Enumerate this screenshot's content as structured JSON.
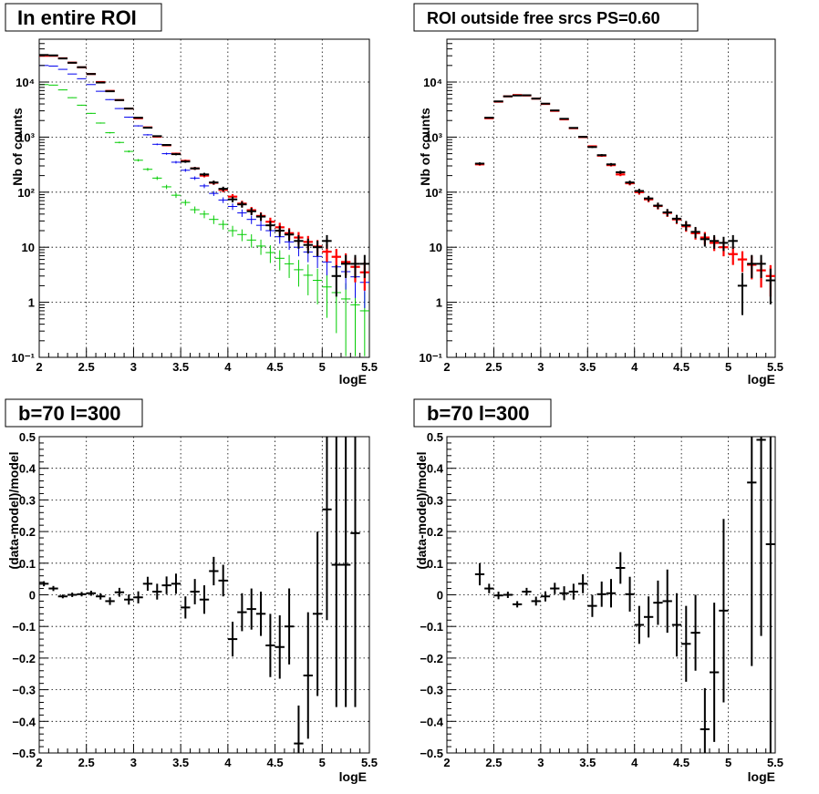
{
  "chart_data": [
    {
      "type": "scatter",
      "title": "In entire ROI",
      "xlabel": "logE",
      "ylabel": "Nb of counts",
      "xlim": [
        2,
        5.5
      ],
      "ylim": [
        0.1,
        60000
      ],
      "yscale": "log",
      "grid": true,
      "x_ticks": [
        "2",
        "2.5",
        "3",
        "3.5",
        "4",
        "4.5",
        "5",
        "5.5"
      ],
      "y_ticks": [
        "10⁻¹",
        "1",
        "10",
        "10²",
        "10³",
        "10⁴"
      ],
      "series": [
        {
          "color": "#00cc00",
          "x": [
            2.05,
            2.15,
            2.25,
            2.35,
            2.45,
            2.55,
            2.65,
            2.75,
            2.85,
            2.95,
            3.05,
            3.15,
            3.25,
            3.35,
            3.45,
            3.55,
            3.65,
            3.75,
            3.85,
            3.95,
            4.05,
            4.15,
            4.25,
            4.35,
            4.45,
            4.55,
            4.65,
            4.75,
            4.85,
            4.95,
            5.05,
            5.15,
            5.25,
            5.35,
            5.45
          ],
          "y": [
            9000,
            8800,
            7200,
            5200,
            3800,
            2700,
            1800,
            1200,
            800,
            550,
            380,
            260,
            180,
            125,
            88,
            65,
            48,
            40,
            32,
            26,
            20,
            17,
            13.5,
            10.5,
            8,
            6.3,
            5,
            3.9,
            3.1,
            2.5,
            1.9,
            1.5,
            1.15,
            0.9,
            0.7
          ]
        },
        {
          "color": "#0000ee",
          "x": [
            2.05,
            2.15,
            2.25,
            2.35,
            2.45,
            2.55,
            2.65,
            2.75,
            2.85,
            2.95,
            3.05,
            3.15,
            3.25,
            3.35,
            3.45,
            3.55,
            3.65,
            3.75,
            3.85,
            3.95,
            4.05,
            4.15,
            4.25,
            4.35,
            4.45,
            4.55,
            4.65,
            4.75,
            4.85,
            4.95,
            5.05,
            5.15,
            5.25,
            5.35,
            5.45
          ],
          "y": [
            20000,
            19500,
            17000,
            14000,
            11500,
            9000,
            6800,
            4800,
            3300,
            2300,
            1600,
            1100,
            740,
            500,
            350,
            250,
            180,
            130,
            95,
            72,
            55,
            42,
            32,
            25,
            20,
            15.5,
            12.5,
            10,
            8.2,
            6.8,
            5.4,
            4.4,
            3.6,
            2.9,
            2.3
          ]
        },
        {
          "color": "#ff0000",
          "x": [
            2.05,
            2.15,
            2.25,
            2.35,
            2.45,
            2.55,
            2.65,
            2.75,
            2.85,
            2.95,
            3.05,
            3.15,
            3.25,
            3.35,
            3.45,
            3.55,
            3.65,
            3.75,
            3.85,
            3.95,
            4.05,
            4.15,
            4.25,
            4.35,
            4.45,
            4.55,
            4.65,
            4.75,
            4.85,
            4.95,
            5.05,
            5.15,
            5.25,
            5.35,
            5.45
          ],
          "y": [
            30000,
            30000,
            27000,
            22500,
            18500,
            14000,
            10000,
            6900,
            4700,
            3300,
            2200,
            1500,
            1020,
            710,
            500,
            370,
            270,
            200,
            148,
            110,
            83,
            62,
            47,
            37,
            29,
            23,
            18,
            15,
            12.5,
            10.3,
            8.3,
            6.7,
            5.4,
            4.4,
            3.5
          ]
        },
        {
          "color": "#000000",
          "x": [
            2.05,
            2.15,
            2.25,
            2.35,
            2.45,
            2.55,
            2.65,
            2.75,
            2.85,
            2.95,
            3.05,
            3.15,
            3.25,
            3.35,
            3.45,
            3.55,
            3.65,
            3.75,
            3.85,
            3.95,
            4.05,
            4.15,
            4.25,
            4.35,
            4.45,
            4.55,
            4.65,
            4.75,
            4.85,
            4.95,
            5.05,
            5.15,
            5.25,
            5.35,
            5.45
          ],
          "y": [
            31000,
            30500,
            26800,
            22400,
            18600,
            14000,
            9800,
            6800,
            4700,
            3300,
            2250,
            1480,
            1040,
            720,
            490,
            360,
            270,
            210,
            150,
            115,
            74,
            60,
            45,
            36,
            25,
            20,
            17,
            13,
            11,
            10,
            13,
            3,
            5,
            5,
            5
          ]
        }
      ]
    },
    {
      "type": "scatter",
      "title": "ROI outside free srcs PS=0.60",
      "xlabel": "logE",
      "ylabel": "Nb of counts",
      "xlim": [
        2,
        5.5
      ],
      "ylim": [
        0.1,
        60000
      ],
      "yscale": "log",
      "grid": true,
      "x_ticks": [
        "2",
        "2.5",
        "3",
        "3.5",
        "4",
        "4.5",
        "5",
        "5.5"
      ],
      "y_ticks": [
        "10⁻¹",
        "1",
        "10",
        "10²",
        "10³",
        "10⁴"
      ],
      "series": [
        {
          "color": "#ff0000",
          "x": [
            2.35,
            2.45,
            2.55,
            2.65,
            2.75,
            2.85,
            2.95,
            3.05,
            3.15,
            3.25,
            3.35,
            3.45,
            3.55,
            3.65,
            3.75,
            3.85,
            3.95,
            4.05,
            4.15,
            4.25,
            4.35,
            4.45,
            4.55,
            4.65,
            4.75,
            4.85,
            4.95,
            5.05,
            5.15,
            5.25,
            5.35,
            5.45
          ],
          "y": [
            320,
            2200,
            4400,
            5500,
            5800,
            5700,
            5000,
            4000,
            3000,
            2100,
            1450,
            1000,
            680,
            460,
            310,
            210,
            145,
            100,
            74,
            56,
            42,
            32,
            24,
            18,
            15,
            12,
            10,
            7.5,
            6,
            4.8,
            3.8,
            3
          ]
        },
        {
          "color": "#000000",
          "x": [
            2.35,
            2.45,
            2.55,
            2.65,
            2.75,
            2.85,
            2.95,
            3.05,
            3.15,
            3.25,
            3.35,
            3.45,
            3.55,
            3.65,
            3.75,
            3.85,
            3.95,
            4.05,
            4.15,
            4.25,
            4.35,
            4.45,
            4.55,
            4.65,
            4.75,
            4.85,
            4.95,
            5.05,
            5.15,
            5.25,
            5.35,
            5.45
          ],
          "y": [
            330,
            2250,
            4450,
            5500,
            5700,
            5750,
            5000,
            4050,
            3050,
            2150,
            1470,
            1010,
            660,
            470,
            320,
            230,
            150,
            105,
            77,
            57,
            43,
            33,
            25,
            19,
            14,
            13,
            12,
            13,
            2,
            5,
            5,
            2.5
          ]
        }
      ]
    },
    {
      "type": "scatter",
      "title": "b=70 l=300",
      "xlabel": "logE",
      "ylabel": "(data-model)/model",
      "xlim": [
        2,
        5.5
      ],
      "ylim": [
        -0.5,
        0.5
      ],
      "grid": true,
      "x_ticks": [
        "2",
        "2.5",
        "3",
        "3.5",
        "4",
        "4.5",
        "5",
        "5.5"
      ],
      "y_ticks": [
        "−0.5",
        "−0.4",
        "−0.3",
        "−0.2",
        "−0.1",
        "0",
        "0.1",
        "0.2",
        "0.3",
        "0.4",
        "0.5"
      ],
      "series": [
        {
          "color": "#000000",
          "x": [
            2.05,
            2.15,
            2.25,
            2.35,
            2.45,
            2.55,
            2.65,
            2.75,
            2.85,
            2.95,
            3.05,
            3.15,
            3.25,
            3.35,
            3.45,
            3.55,
            3.65,
            3.75,
            3.85,
            3.95,
            4.05,
            4.15,
            4.25,
            4.35,
            4.45,
            4.55,
            4.65,
            4.75,
            4.85,
            4.95,
            5.05,
            5.15,
            5.25,
            5.35
          ],
          "y": [
            0.035,
            0.02,
            -0.005,
            0,
            0.002,
            0.005,
            -0.005,
            -0.02,
            0.008,
            -0.015,
            -0.008,
            0.035,
            0.01,
            0.03,
            0.035,
            -0.04,
            0.01,
            -0.015,
            0.075,
            0.045,
            -0.14,
            -0.055,
            -0.045,
            -0.06,
            -0.16,
            -0.165,
            -0.1,
            -0.47,
            -0.255,
            -0.06,
            0.27,
            0.095,
            0.095,
            0.195
          ],
          "err": [
            0.008,
            0.008,
            0.006,
            0.007,
            0.007,
            0.008,
            0.01,
            0.012,
            0.014,
            0.016,
            0.019,
            0.022,
            0.025,
            0.028,
            0.032,
            0.035,
            0.04,
            0.045,
            0.045,
            0.05,
            0.055,
            0.06,
            0.065,
            0.07,
            0.1,
            0.1,
            0.12,
            0.12,
            0.2,
            0.26,
            0.35,
            0.45,
            0.45,
            0.55
          ]
        }
      ]
    },
    {
      "type": "scatter",
      "title": "b=70 l=300",
      "xlabel": "logE",
      "ylabel": "(data-model)/model",
      "xlim": [
        2,
        5.5
      ],
      "ylim": [
        -0.5,
        0.5
      ],
      "grid": true,
      "x_ticks": [
        "2",
        "2.5",
        "3",
        "3.5",
        "4",
        "4.5",
        "5",
        "5.5"
      ],
      "y_ticks": [
        "−0.5",
        "−0.4",
        "−0.3",
        "−0.2",
        "−0.1",
        "0",
        "0.1",
        "0.2",
        "0.3",
        "0.4",
        "0.5"
      ],
      "series": [
        {
          "color": "#000000",
          "x": [
            2.35,
            2.45,
            2.55,
            2.65,
            2.75,
            2.85,
            2.95,
            3.05,
            3.15,
            3.25,
            3.35,
            3.45,
            3.55,
            3.65,
            3.75,
            3.85,
            3.95,
            4.05,
            4.15,
            4.25,
            4.35,
            4.45,
            4.55,
            4.65,
            4.75,
            4.85,
            4.95,
            5.25,
            5.35,
            5.45
          ],
          "y": [
            0.065,
            0.02,
            -0.002,
            0,
            -0.03,
            0.01,
            -0.02,
            -0.005,
            0.02,
            0.005,
            0.01,
            0.035,
            -0.035,
            0.002,
            0.005,
            0.085,
            0.002,
            -0.095,
            -0.07,
            -0.025,
            -0.02,
            -0.095,
            -0.155,
            -0.12,
            -0.425,
            -0.245,
            -0.05,
            0.355,
            0.49,
            0.16
          ],
          "err": [
            0.035,
            0.015,
            0.012,
            0.01,
            0.01,
            0.012,
            0.014,
            0.016,
            0.018,
            0.022,
            0.025,
            0.03,
            0.035,
            0.04,
            0.045,
            0.05,
            0.055,
            0.06,
            0.065,
            0.07,
            0.1,
            0.1,
            0.12,
            0.12,
            0.13,
            0.22,
            0.29,
            0.58,
            0.62,
            0.66
          ]
        }
      ]
    }
  ]
}
